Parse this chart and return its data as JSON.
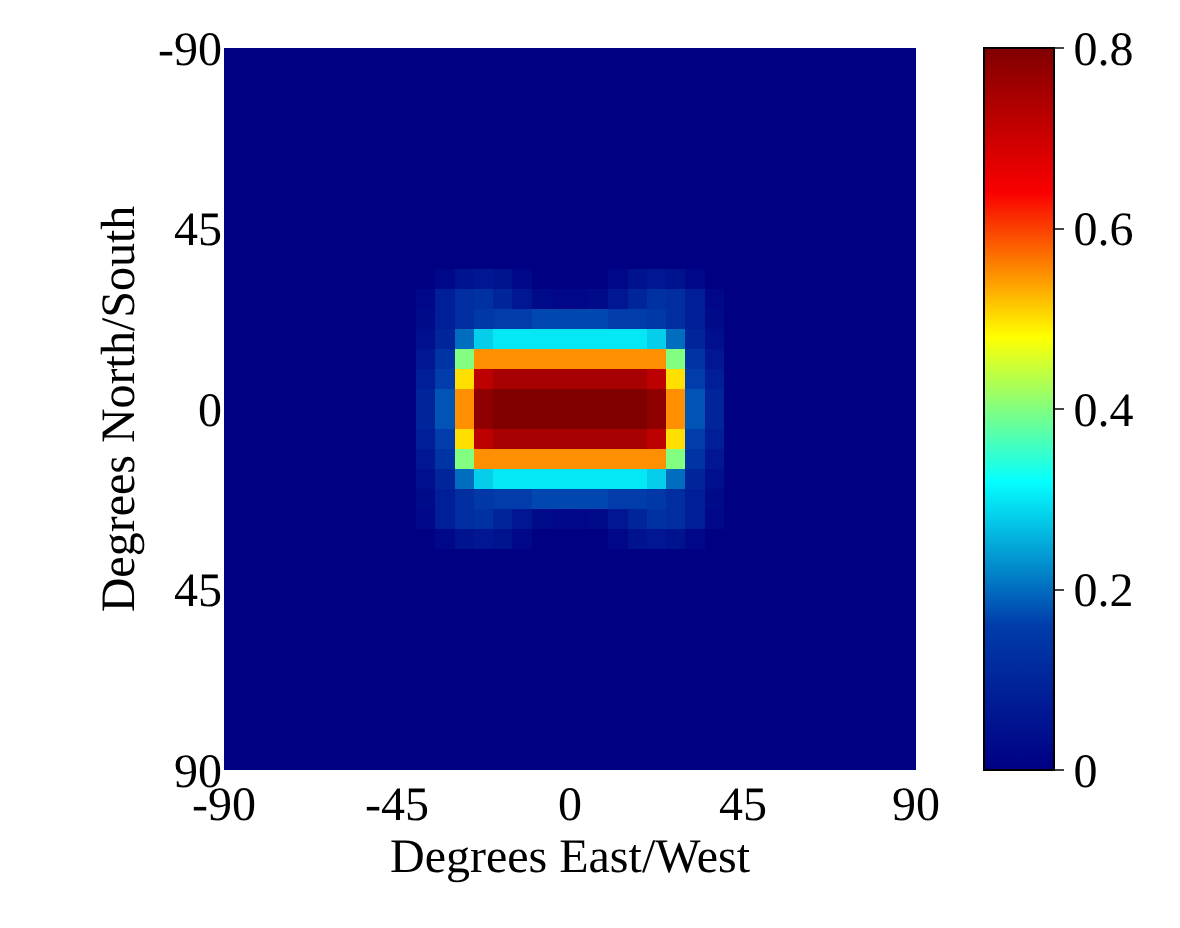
{
  "chart_data": {
    "type": "heatmap",
    "xlabel": "Degrees East/West",
    "ylabel": "Degrees North/South",
    "x": [
      -87.5,
      -82.5,
      -77.5,
      -72.5,
      -67.5,
      -62.5,
      -57.5,
      -52.5,
      -47.5,
      -42.5,
      -37.5,
      -32.5,
      -27.5,
      -22.5,
      -17.5,
      -12.5,
      -7.5,
      -2.5,
      2.5,
      7.5,
      12.5,
      17.5,
      22.5,
      27.5,
      32.5,
      37.5,
      42.5,
      47.5,
      52.5,
      57.5,
      62.5,
      67.5,
      72.5,
      77.5,
      82.5,
      87.5
    ],
    "y": [
      -87.5,
      -82.5,
      -77.5,
      -72.5,
      -67.5,
      -62.5,
      -57.5,
      -52.5,
      -47.5,
      -42.5,
      -37.5,
      -32.5,
      -27.5,
      -22.5,
      -17.5,
      -12.5,
      -7.5,
      -2.5,
      2.5,
      7.5,
      12.5,
      17.5,
      22.5,
      27.5,
      32.5,
      37.5,
      42.5,
      47.5,
      52.5,
      57.5,
      62.5,
      67.5,
      72.5,
      77.5,
      82.5,
      87.5
    ],
    "xlim": [
      -90,
      90
    ],
    "xticks": [
      -90,
      -45,
      0,
      45,
      90
    ],
    "ylim": [
      90,
      -90
    ],
    "yticks": [
      -90,
      {
        "value": -45,
        "label": "45"
      },
      0,
      45,
      90
    ],
    "clim": [
      0,
      0.8
    ],
    "cticks": [
      0,
      0.2,
      0.4,
      0.6,
      0.8
    ],
    "cells": [
      [
        0,
        0,
        0,
        0,
        0,
        0,
        0,
        0,
        0,
        0,
        0,
        0,
        0,
        0,
        0,
        0,
        0,
        0,
        0,
        0,
        0,
        0,
        0,
        0,
        0,
        0,
        0,
        0,
        0,
        0,
        0,
        0,
        0,
        0,
        0,
        0
      ],
      [
        0,
        0,
        0,
        0,
        0,
        0,
        0,
        0,
        0,
        0,
        0,
        0,
        0,
        0,
        0,
        0,
        0,
        0,
        0,
        0,
        0,
        0,
        0,
        0,
        0,
        0,
        0,
        0,
        0,
        0,
        0,
        0,
        0,
        0,
        0,
        0
      ],
      [
        0,
        0,
        0,
        0,
        0,
        0,
        0,
        0,
        0,
        0,
        0,
        0,
        0,
        0,
        0,
        0,
        0,
        0,
        0,
        0,
        0,
        0,
        0,
        0,
        0,
        0,
        0,
        0,
        0,
        0,
        0,
        0,
        0,
        0,
        0,
        0
      ],
      [
        0,
        0,
        0,
        0,
        0,
        0,
        0,
        0,
        0,
        0,
        0,
        0,
        0,
        0,
        0,
        0,
        0,
        0,
        0,
        0,
        0,
        0,
        0,
        0,
        0,
        0,
        0,
        0,
        0,
        0,
        0,
        0,
        0,
        0,
        0,
        0
      ],
      [
        0,
        0,
        0,
        0,
        0,
        0,
        0,
        0,
        0,
        0,
        0,
        0,
        0,
        0,
        0,
        0,
        0,
        0,
        0,
        0,
        0,
        0,
        0,
        0,
        0,
        0,
        0,
        0,
        0,
        0,
        0,
        0,
        0,
        0,
        0,
        0
      ],
      [
        0,
        0,
        0,
        0,
        0,
        0,
        0,
        0,
        0,
        0,
        0,
        0,
        0,
        0,
        0,
        0,
        0,
        0,
        0,
        0,
        0,
        0,
        0,
        0,
        0,
        0,
        0,
        0,
        0,
        0,
        0,
        0,
        0,
        0,
        0,
        0
      ],
      [
        0,
        0,
        0,
        0,
        0,
        0,
        0,
        0,
        0,
        0,
        0,
        0,
        0,
        0,
        0,
        0,
        0,
        0,
        0,
        0,
        0,
        0,
        0,
        0,
        0,
        0,
        0,
        0,
        0,
        0,
        0,
        0,
        0,
        0,
        0,
        0
      ],
      [
        0,
        0,
        0,
        0,
        0,
        0,
        0,
        0,
        0,
        0,
        0,
        0,
        0,
        0,
        0,
        0,
        0,
        0,
        0,
        0,
        0,
        0,
        0,
        0,
        0,
        0,
        0,
        0,
        0,
        0,
        0,
        0,
        0,
        0,
        0,
        0
      ],
      [
        0,
        0,
        0,
        0,
        0,
        0,
        0,
        0,
        0,
        0,
        0,
        0,
        0,
        0,
        0,
        0,
        0,
        0,
        0,
        0,
        0,
        0,
        0,
        0,
        0,
        0,
        0,
        0,
        0,
        0,
        0,
        0,
        0,
        0,
        0,
        0
      ],
      [
        0,
        0,
        0,
        0,
        0,
        0,
        0,
        0,
        0,
        0,
        0,
        0,
        0,
        0,
        0,
        0,
        0,
        0,
        0,
        0,
        0,
        0,
        0,
        0,
        0,
        0,
        0,
        0,
        0,
        0,
        0,
        0,
        0,
        0,
        0,
        0
      ],
      [
        0,
        0,
        0,
        0,
        0,
        0,
        0,
        0,
        0,
        0,
        0,
        0,
        0,
        0,
        0,
        0,
        0,
        0,
        0,
        0,
        0,
        0,
        0,
        0,
        0,
        0,
        0,
        0,
        0,
        0,
        0,
        0,
        0,
        0,
        0,
        0
      ],
      [
        0,
        0,
        0,
        0,
        0,
        0,
        0,
        0,
        0,
        0,
        0,
        0.02,
        0.05,
        0.06,
        0.05,
        0.02,
        0,
        0,
        0,
        0,
        0.02,
        0.05,
        0.06,
        0.05,
        0.02,
        0,
        0,
        0,
        0,
        0,
        0,
        0,
        0,
        0,
        0,
        0
      ],
      [
        0,
        0,
        0,
        0,
        0,
        0,
        0,
        0,
        0,
        0,
        0.02,
        0.08,
        0.12,
        0.13,
        0.1,
        0.06,
        0.03,
        0.02,
        0.02,
        0.03,
        0.06,
        0.1,
        0.13,
        0.12,
        0.08,
        0.02,
        0,
        0,
        0,
        0,
        0,
        0,
        0,
        0,
        0,
        0
      ],
      [
        0,
        0,
        0,
        0,
        0,
        0,
        0,
        0,
        0,
        0,
        0.03,
        0.08,
        0.12,
        0.15,
        0.16,
        0.16,
        0.17,
        0.17,
        0.17,
        0.17,
        0.16,
        0.16,
        0.15,
        0.12,
        0.08,
        0.03,
        0,
        0,
        0,
        0,
        0,
        0,
        0,
        0,
        0,
        0
      ],
      [
        0,
        0,
        0,
        0,
        0,
        0,
        0,
        0,
        0,
        0,
        0.04,
        0.1,
        0.2,
        0.28,
        0.3,
        0.3,
        0.3,
        0.3,
        0.3,
        0.3,
        0.3,
        0.3,
        0.28,
        0.2,
        0.1,
        0.04,
        0,
        0,
        0,
        0,
        0,
        0,
        0,
        0,
        0,
        0
      ],
      [
        0,
        0,
        0,
        0,
        0,
        0,
        0,
        0,
        0,
        0,
        0.06,
        0.14,
        0.4,
        0.55,
        0.55,
        0.55,
        0.55,
        0.55,
        0.55,
        0.55,
        0.55,
        0.55,
        0.55,
        0.4,
        0.14,
        0.06,
        0,
        0,
        0,
        0,
        0,
        0,
        0,
        0,
        0,
        0
      ],
      [
        0,
        0,
        0,
        0,
        0,
        0,
        0,
        0,
        0,
        0,
        0.08,
        0.16,
        0.5,
        0.72,
        0.75,
        0.75,
        0.75,
        0.75,
        0.75,
        0.75,
        0.75,
        0.75,
        0.72,
        0.5,
        0.16,
        0.08,
        0,
        0,
        0,
        0,
        0,
        0,
        0,
        0,
        0,
        0
      ],
      [
        0,
        0,
        0,
        0,
        0,
        0,
        0,
        0,
        0,
        0,
        0.1,
        0.18,
        0.55,
        0.78,
        0.8,
        0.8,
        0.8,
        0.8,
        0.8,
        0.8,
        0.8,
        0.8,
        0.78,
        0.55,
        0.18,
        0.1,
        0,
        0,
        0,
        0,
        0,
        0,
        0,
        0,
        0,
        0
      ],
      [
        0,
        0,
        0,
        0,
        0,
        0,
        0,
        0,
        0,
        0,
        0.1,
        0.18,
        0.55,
        0.78,
        0.8,
        0.8,
        0.8,
        0.8,
        0.8,
        0.8,
        0.8,
        0.8,
        0.78,
        0.55,
        0.18,
        0.1,
        0,
        0,
        0,
        0,
        0,
        0,
        0,
        0,
        0,
        0
      ],
      [
        0,
        0,
        0,
        0,
        0,
        0,
        0,
        0,
        0,
        0,
        0.08,
        0.16,
        0.5,
        0.72,
        0.75,
        0.75,
        0.75,
        0.75,
        0.75,
        0.75,
        0.75,
        0.75,
        0.72,
        0.5,
        0.16,
        0.08,
        0,
        0,
        0,
        0,
        0,
        0,
        0,
        0,
        0,
        0
      ],
      [
        0,
        0,
        0,
        0,
        0,
        0,
        0,
        0,
        0,
        0,
        0.06,
        0.14,
        0.4,
        0.55,
        0.55,
        0.55,
        0.55,
        0.55,
        0.55,
        0.55,
        0.55,
        0.55,
        0.55,
        0.4,
        0.14,
        0.06,
        0,
        0,
        0,
        0,
        0,
        0,
        0,
        0,
        0,
        0
      ],
      [
        0,
        0,
        0,
        0,
        0,
        0,
        0,
        0,
        0,
        0,
        0.04,
        0.1,
        0.2,
        0.28,
        0.3,
        0.3,
        0.3,
        0.3,
        0.3,
        0.3,
        0.3,
        0.3,
        0.28,
        0.2,
        0.1,
        0.04,
        0,
        0,
        0,
        0,
        0,
        0,
        0,
        0,
        0,
        0
      ],
      [
        0,
        0,
        0,
        0,
        0,
        0,
        0,
        0,
        0,
        0,
        0.03,
        0.08,
        0.12,
        0.15,
        0.16,
        0.16,
        0.17,
        0.17,
        0.17,
        0.17,
        0.16,
        0.16,
        0.15,
        0.12,
        0.08,
        0.03,
        0,
        0,
        0,
        0,
        0,
        0,
        0,
        0,
        0,
        0
      ],
      [
        0,
        0,
        0,
        0,
        0,
        0,
        0,
        0,
        0,
        0,
        0.02,
        0.08,
        0.12,
        0.13,
        0.1,
        0.06,
        0.03,
        0.02,
        0.02,
        0.03,
        0.06,
        0.1,
        0.13,
        0.12,
        0.08,
        0.02,
        0,
        0,
        0,
        0,
        0,
        0,
        0,
        0,
        0,
        0
      ],
      [
        0,
        0,
        0,
        0,
        0,
        0,
        0,
        0,
        0,
        0,
        0,
        0.02,
        0.05,
        0.06,
        0.05,
        0.02,
        0,
        0,
        0,
        0,
        0.02,
        0.05,
        0.06,
        0.05,
        0.02,
        0,
        0,
        0,
        0,
        0,
        0,
        0,
        0,
        0,
        0,
        0
      ],
      [
        0,
        0,
        0,
        0,
        0,
        0,
        0,
        0,
        0,
        0,
        0,
        0,
        0,
        0,
        0,
        0,
        0,
        0,
        0,
        0,
        0,
        0,
        0,
        0,
        0,
        0,
        0,
        0,
        0,
        0,
        0,
        0,
        0,
        0,
        0,
        0
      ],
      [
        0,
        0,
        0,
        0,
        0,
        0,
        0,
        0,
        0,
        0,
        0,
        0,
        0,
        0,
        0,
        0,
        0,
        0,
        0,
        0,
        0,
        0,
        0,
        0,
        0,
        0,
        0,
        0,
        0,
        0,
        0,
        0,
        0,
        0,
        0,
        0
      ],
      [
        0,
        0,
        0,
        0,
        0,
        0,
        0,
        0,
        0,
        0,
        0,
        0,
        0,
        0,
        0,
        0,
        0,
        0,
        0,
        0,
        0,
        0,
        0,
        0,
        0,
        0,
        0,
        0,
        0,
        0,
        0,
        0,
        0,
        0,
        0,
        0
      ],
      [
        0,
        0,
        0,
        0,
        0,
        0,
        0,
        0,
        0,
        0,
        0,
        0,
        0,
        0,
        0,
        0,
        0,
        0,
        0,
        0,
        0,
        0,
        0,
        0,
        0,
        0,
        0,
        0,
        0,
        0,
        0,
        0,
        0,
        0,
        0,
        0
      ],
      [
        0,
        0,
        0,
        0,
        0,
        0,
        0,
        0,
        0,
        0,
        0,
        0,
        0,
        0,
        0,
        0,
        0,
        0,
        0,
        0,
        0,
        0,
        0,
        0,
        0,
        0,
        0,
        0,
        0,
        0,
        0,
        0,
        0,
        0,
        0,
        0
      ],
      [
        0,
        0,
        0,
        0,
        0,
        0,
        0,
        0,
        0,
        0,
        0,
        0,
        0,
        0,
        0,
        0,
        0,
        0,
        0,
        0,
        0,
        0,
        0,
        0,
        0,
        0,
        0,
        0,
        0,
        0,
        0,
        0,
        0,
        0,
        0,
        0
      ],
      [
        0,
        0,
        0,
        0,
        0,
        0,
        0,
        0,
        0,
        0,
        0,
        0,
        0,
        0,
        0,
        0,
        0,
        0,
        0,
        0,
        0,
        0,
        0,
        0,
        0,
        0,
        0,
        0,
        0,
        0,
        0,
        0,
        0,
        0,
        0,
        0
      ],
      [
        0,
        0,
        0,
        0,
        0,
        0,
        0,
        0,
        0,
        0,
        0,
        0,
        0,
        0,
        0,
        0,
        0,
        0,
        0,
        0,
        0,
        0,
        0,
        0,
        0,
        0,
        0,
        0,
        0,
        0,
        0,
        0,
        0,
        0,
        0,
        0
      ],
      [
        0,
        0,
        0,
        0,
        0,
        0,
        0,
        0,
        0,
        0,
        0,
        0,
        0,
        0,
        0,
        0,
        0,
        0,
        0,
        0,
        0,
        0,
        0,
        0,
        0,
        0,
        0,
        0,
        0,
        0,
        0,
        0,
        0,
        0,
        0,
        0
      ],
      [
        0,
        0,
        0,
        0,
        0,
        0,
        0,
        0,
        0,
        0,
        0,
        0,
        0,
        0,
        0,
        0,
        0,
        0,
        0,
        0,
        0,
        0,
        0,
        0,
        0,
        0,
        0,
        0,
        0,
        0,
        0,
        0,
        0,
        0,
        0,
        0
      ],
      [
        0,
        0,
        0,
        0,
        0,
        0,
        0,
        0,
        0,
        0,
        0,
        0,
        0,
        0,
        0,
        0,
        0,
        0,
        0,
        0,
        0,
        0,
        0,
        0,
        0,
        0,
        0,
        0,
        0,
        0,
        0,
        0,
        0,
        0,
        0,
        0
      ]
    ]
  }
}
